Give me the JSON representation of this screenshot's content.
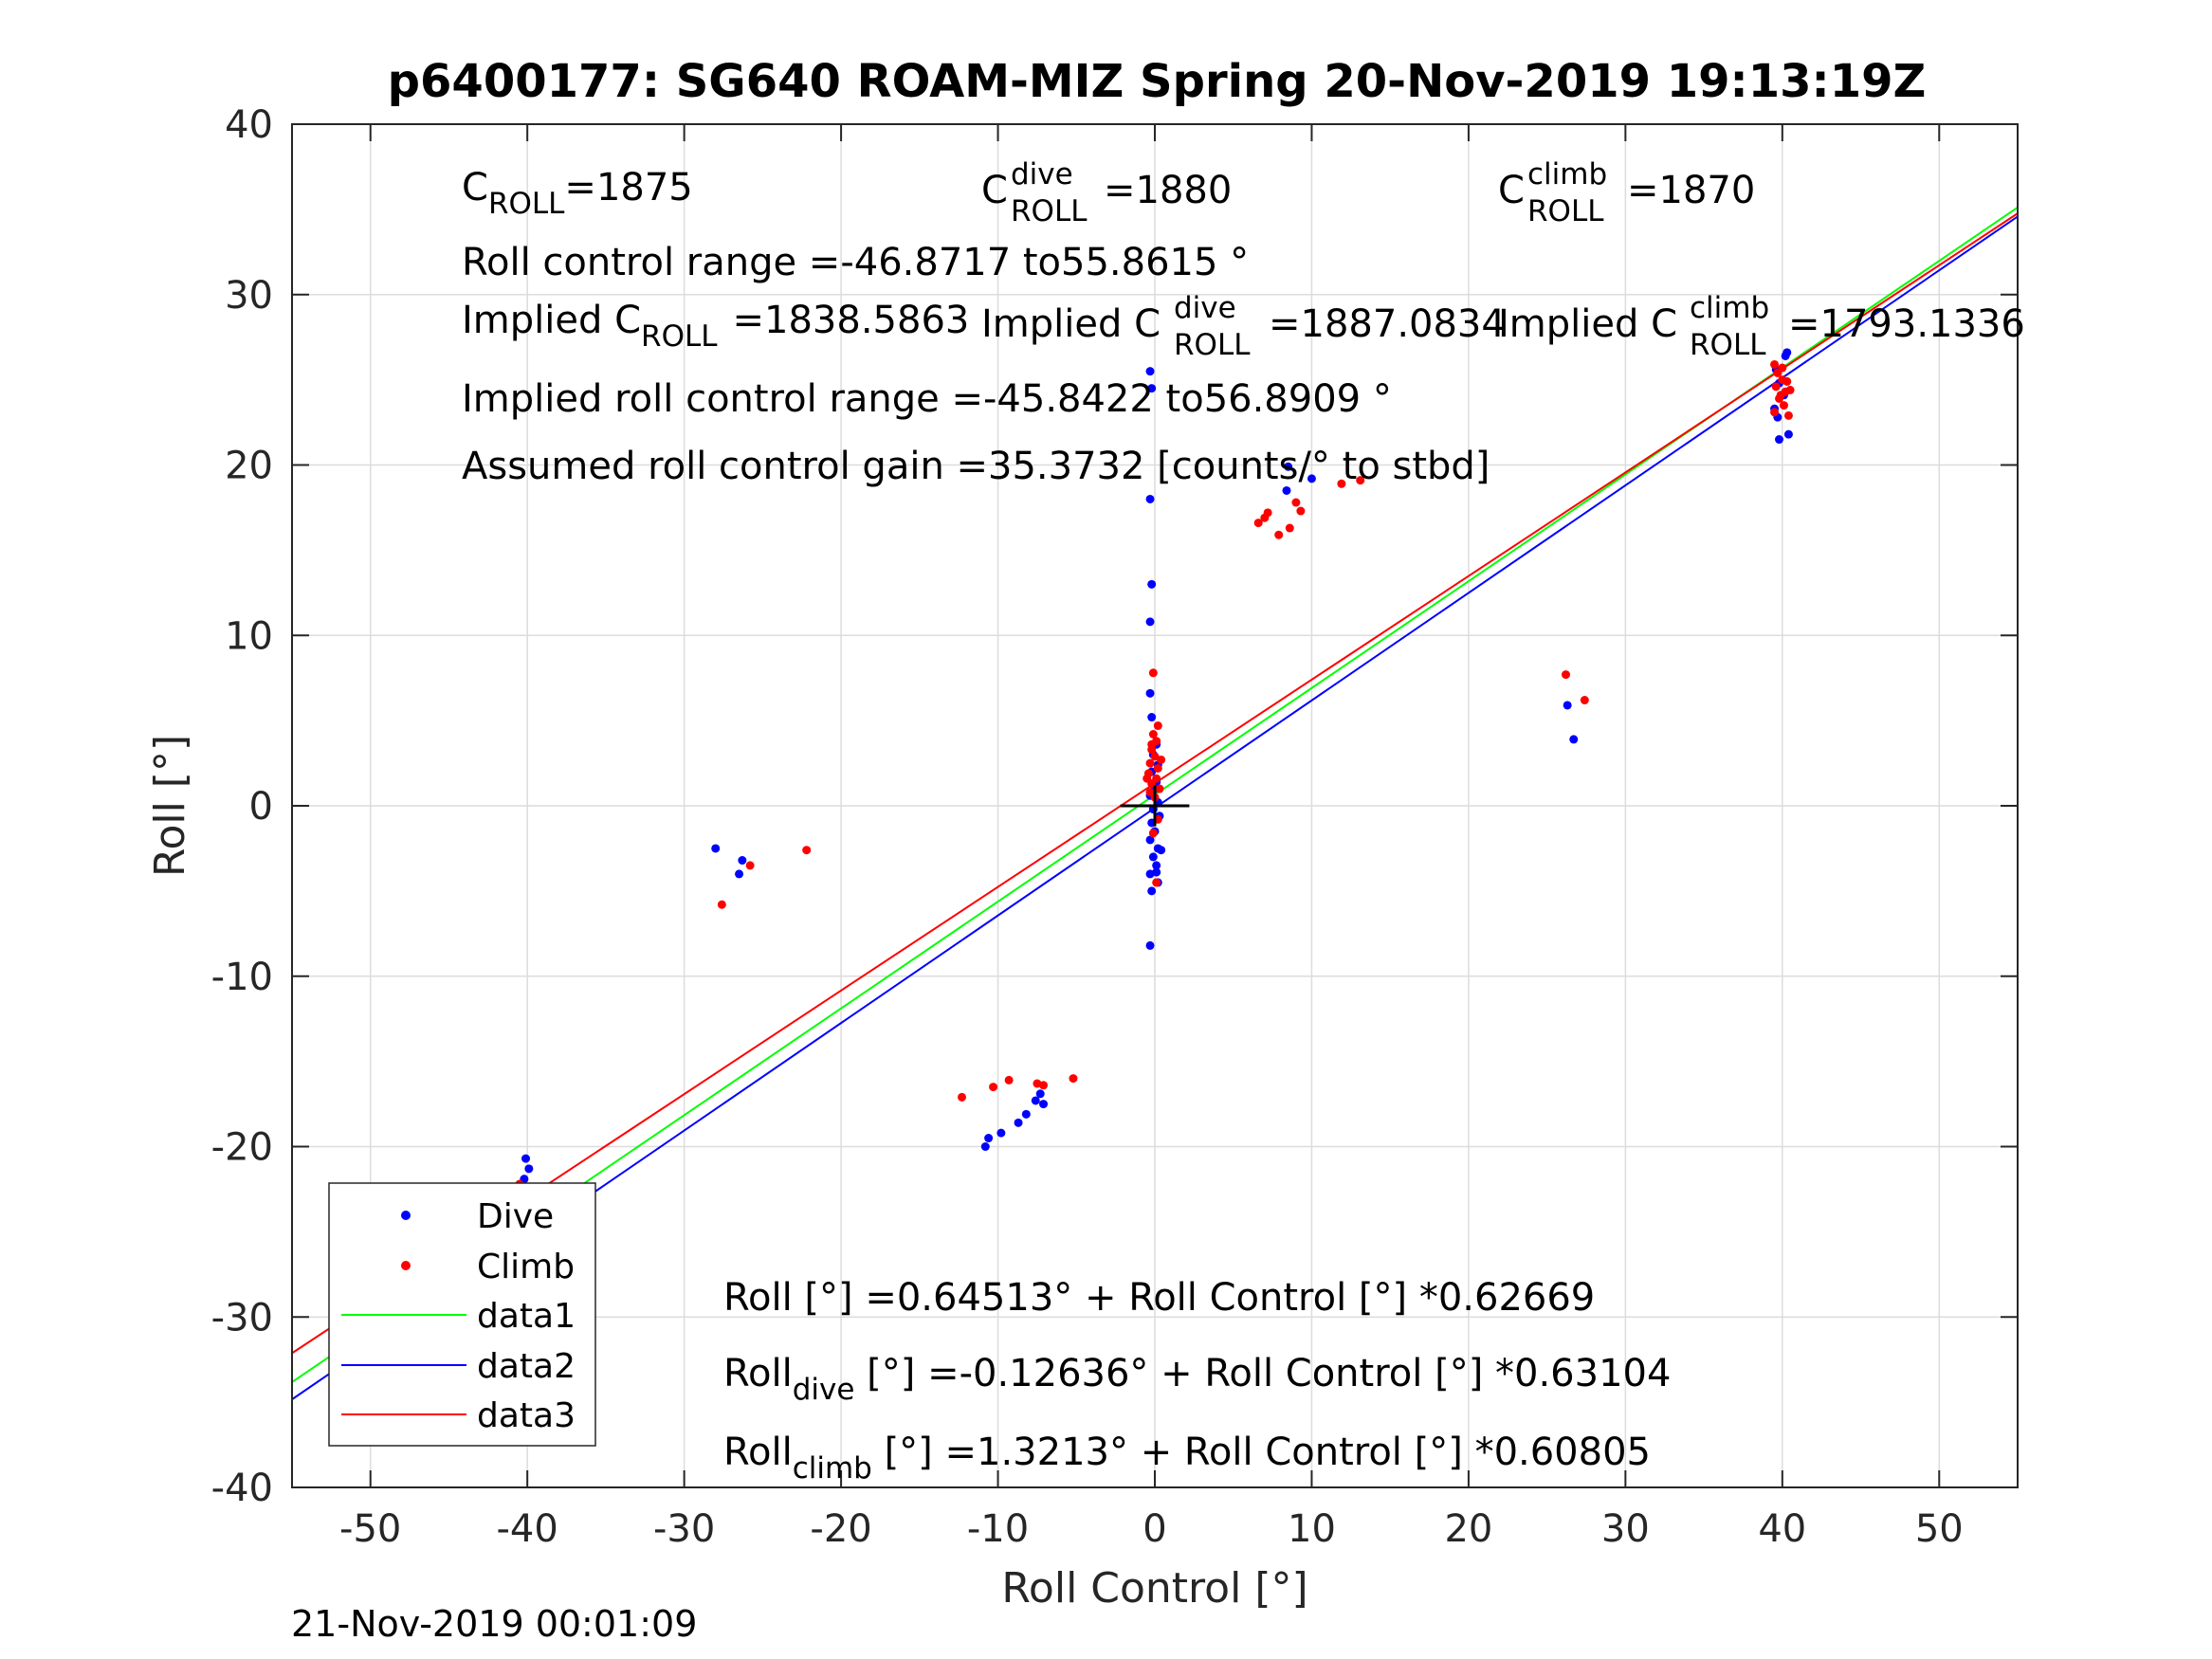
{
  "chart_data": {
    "type": "scatter",
    "title": "p6400177: SG640 ROAM-MIZ Spring 20-Nov-2019 19:13:19Z",
    "xlabel": "Roll Control [°]",
    "ylabel": "Roll [°]",
    "xlim": [
      -55,
      55
    ],
    "ylim": [
      -40,
      40
    ],
    "xticks": [
      "-50",
      "-40",
      "-30",
      "-20",
      "-10",
      "0",
      "10",
      "20",
      "30",
      "40",
      "50"
    ],
    "yticks": [
      "40",
      "30",
      "20",
      "10",
      "0",
      "-10",
      "-20",
      "-30",
      "-40"
    ],
    "grid": true,
    "legend_position": "bottom-left",
    "colors": {
      "dive": "#0000ff",
      "climb": "#ff0000",
      "data1": "#00ff00",
      "data2": "#0000ff",
      "data3": "#ff0000"
    },
    "series": [
      {
        "name": "Dive",
        "kind": "points",
        "color": "#0000ff",
        "points": [
          [
            -0.3,
            25.5
          ],
          [
            -0.2,
            24.5
          ],
          [
            -0.3,
            18
          ],
          [
            -0.2,
            13
          ],
          [
            -0.3,
            10.8
          ],
          [
            -0.3,
            6.6
          ],
          [
            -0.2,
            5.2
          ],
          [
            0.1,
            3.6
          ],
          [
            -0.1,
            3.0
          ],
          [
            0.2,
            2.4
          ],
          [
            -0.2,
            2.0
          ],
          [
            0.1,
            1.4
          ],
          [
            0.0,
            1.0
          ],
          [
            -0.3,
            0.6
          ],
          [
            0.2,
            0.2
          ],
          [
            -0.1,
            -0.2
          ],
          [
            0.3,
            -0.6
          ],
          [
            -0.2,
            -1.0
          ],
          [
            0.0,
            -1.5
          ],
          [
            -0.3,
            -2.0
          ],
          [
            0.2,
            -2.5
          ],
          [
            -0.1,
            -3.0
          ],
          [
            0.1,
            -3.5
          ],
          [
            -0.3,
            -4.0
          ],
          [
            0.2,
            -4.5
          ],
          [
            -0.2,
            -5.0
          ],
          [
            -0.3,
            -8.2
          ],
          [
            0.4,
            -2.6
          ],
          [
            0.1,
            -3.9
          ],
          [
            -40.1,
            -20.7
          ],
          [
            -39.9,
            -21.3
          ],
          [
            -40.2,
            -21.9
          ],
          [
            -39.8,
            -22.6
          ],
          [
            -40.0,
            -23.2
          ],
          [
            -40.3,
            -23.8
          ],
          [
            -39.7,
            -24.3
          ],
          [
            -40.1,
            -24.8
          ],
          [
            -40.4,
            -25.2
          ],
          [
            -39.9,
            -25.6
          ],
          [
            -40.2,
            -26.0
          ],
          [
            -39.8,
            -26.5
          ],
          [
            -40.0,
            -27.1
          ],
          [
            -40.1,
            -27.8
          ],
          [
            -39.9,
            -28.5
          ],
          [
            -40.2,
            -29.2
          ],
          [
            -39.8,
            -29.5
          ],
          [
            -40.6,
            -24.6
          ],
          [
            -39.5,
            -25.9
          ],
          [
            -40.3,
            -26.9
          ],
          [
            -28.0,
            -2.5
          ],
          [
            -26.3,
            -3.2
          ],
          [
            -26.5,
            -4.0
          ],
          [
            -10.8,
            -20.0
          ],
          [
            -10.6,
            -19.5
          ],
          [
            -9.8,
            -19.2
          ],
          [
            -8.7,
            -18.6
          ],
          [
            -8.2,
            -18.1
          ],
          [
            -7.6,
            -17.3
          ],
          [
            -7.3,
            -16.9
          ],
          [
            -7.1,
            -17.5
          ],
          [
            8.5,
            19.9
          ],
          [
            8.4,
            18.5
          ],
          [
            10.0,
            19.2
          ],
          [
            26.3,
            5.9
          ],
          [
            26.7,
            3.9
          ],
          [
            39.6,
            25.6
          ],
          [
            39.8,
            24.8
          ],
          [
            40.1,
            24.1
          ],
          [
            39.5,
            23.3
          ],
          [
            39.7,
            22.8
          ],
          [
            40.2,
            26.4
          ],
          [
            39.8,
            21.5
          ],
          [
            40.4,
            21.8
          ],
          [
            40.3,
            26.6
          ]
        ]
      },
      {
        "name": "Climb",
        "kind": "points",
        "color": "#ff0000",
        "points": [
          [
            -0.1,
            7.8
          ],
          [
            0.2,
            4.7
          ],
          [
            -0.1,
            4.2
          ],
          [
            0.1,
            3.8
          ],
          [
            -0.2,
            3.3
          ],
          [
            0.0,
            2.9
          ],
          [
            -0.3,
            2.5
          ],
          [
            0.2,
            2.2
          ],
          [
            -0.4,
            1.9
          ],
          [
            0.1,
            1.6
          ],
          [
            -0.2,
            1.3
          ],
          [
            0.3,
            1.0
          ],
          [
            -0.3,
            0.8
          ],
          [
            0.0,
            0.5
          ],
          [
            0.2,
            -0.8
          ],
          [
            -0.1,
            -1.6
          ],
          [
            0.1,
            -4.5
          ],
          [
            -0.2,
            3.6
          ],
          [
            -0.5,
            1.6
          ],
          [
            0.4,
            2.7
          ],
          [
            -40.5,
            -22.2
          ],
          [
            -39.8,
            -22.7
          ],
          [
            -40.0,
            -23.1
          ],
          [
            -40.3,
            -23.5
          ],
          [
            -39.7,
            -23.9
          ],
          [
            -40.1,
            -24.3
          ],
          [
            -40.4,
            -24.7
          ],
          [
            -39.9,
            -25.1
          ],
          [
            -40.2,
            -25.3
          ],
          [
            -27.6,
            -5.8
          ],
          [
            -25.8,
            -3.5
          ],
          [
            -22.2,
            -2.6
          ],
          [
            -12.3,
            -17.1
          ],
          [
            -10.3,
            -16.5
          ],
          [
            -9.3,
            -16.1
          ],
          [
            -7.5,
            -16.3
          ],
          [
            -7.1,
            -16.4
          ],
          [
            -5.2,
            -16.0
          ],
          [
            6.6,
            16.6
          ],
          [
            7.0,
            16.9
          ],
          [
            7.2,
            17.2
          ],
          [
            7.9,
            15.9
          ],
          [
            8.6,
            16.3
          ],
          [
            9.0,
            17.8
          ],
          [
            9.3,
            17.3
          ],
          [
            11.9,
            18.9
          ],
          [
            13.1,
            19.1
          ],
          [
            26.2,
            7.7
          ],
          [
            27.4,
            6.2
          ],
          [
            39.5,
            25.9
          ],
          [
            39.7,
            25.4
          ],
          [
            40.0,
            25.0
          ],
          [
            39.6,
            24.6
          ],
          [
            40.2,
            24.3
          ],
          [
            39.8,
            23.9
          ],
          [
            40.1,
            23.5
          ],
          [
            39.5,
            23.1
          ],
          [
            40.4,
            22.9
          ],
          [
            40.0,
            25.7
          ],
          [
            40.3,
            24.9
          ],
          [
            39.9,
            24.1
          ],
          [
            40.5,
            24.4
          ]
        ]
      },
      {
        "name": "data1",
        "kind": "line",
        "color": "#00ff00",
        "intercept": 0.64513,
        "slope": 0.62669
      },
      {
        "name": "data2",
        "kind": "line",
        "color": "#0000ff",
        "intercept": -0.12636,
        "slope": 0.63104
      },
      {
        "name": "data3",
        "kind": "line",
        "color": "#ff0000",
        "intercept": 1.3213,
        "slope": 0.60805
      }
    ],
    "legend": [
      "Dive",
      "Climb",
      "data1",
      "data2",
      "data3"
    ],
    "annotations": {
      "c_roll_base": "C",
      "c_roll_sub": "ROLL",
      "c_roll_val": "=1875",
      "c_dive_base": "C",
      "c_dive_sup": "dive",
      "c_dive_sub": "ROLL",
      "c_dive_val": "=1880",
      "c_climb_base": "C",
      "c_climb_sup": "climb",
      "c_climb_sub": "ROLL",
      "c_climb_val": "=1870",
      "roll_range": "Roll control range =-46.8717 to55.8615 °",
      "implied_base": "Implied C",
      "implied_sub": "ROLL",
      "implied_val": "=1838.5863",
      "implied_dive_base": "Implied C",
      "implied_dive_sup": "dive",
      "implied_dive_sub": "ROLL",
      "implied_dive_val": "=1887.0834",
      "implied_climb_base": "Implied C",
      "implied_climb_sup": "climb",
      "implied_climb_sub": "ROLL",
      "implied_climb_val": "=1793.1336",
      "implied_range": "Implied roll control range =-45.8422 to56.8909 °",
      "gain": "Assumed roll control gain =35.3732 [counts/° to stbd]",
      "fit_all": "Roll [°] =0.64513° + Roll Control [°] *0.62669",
      "fit_dive_base": "Roll",
      "fit_dive_sub": "dive",
      "fit_dive_rest": " [°] =-0.12636° + Roll Control [°] *0.63104",
      "fit_climb_base": "Roll",
      "fit_climb_sub": "climb",
      "fit_climb_rest": " [°] =1.3213° + Roll Control [°] *0.60805"
    },
    "footer": "21-Nov-2019 00:01:09"
  }
}
